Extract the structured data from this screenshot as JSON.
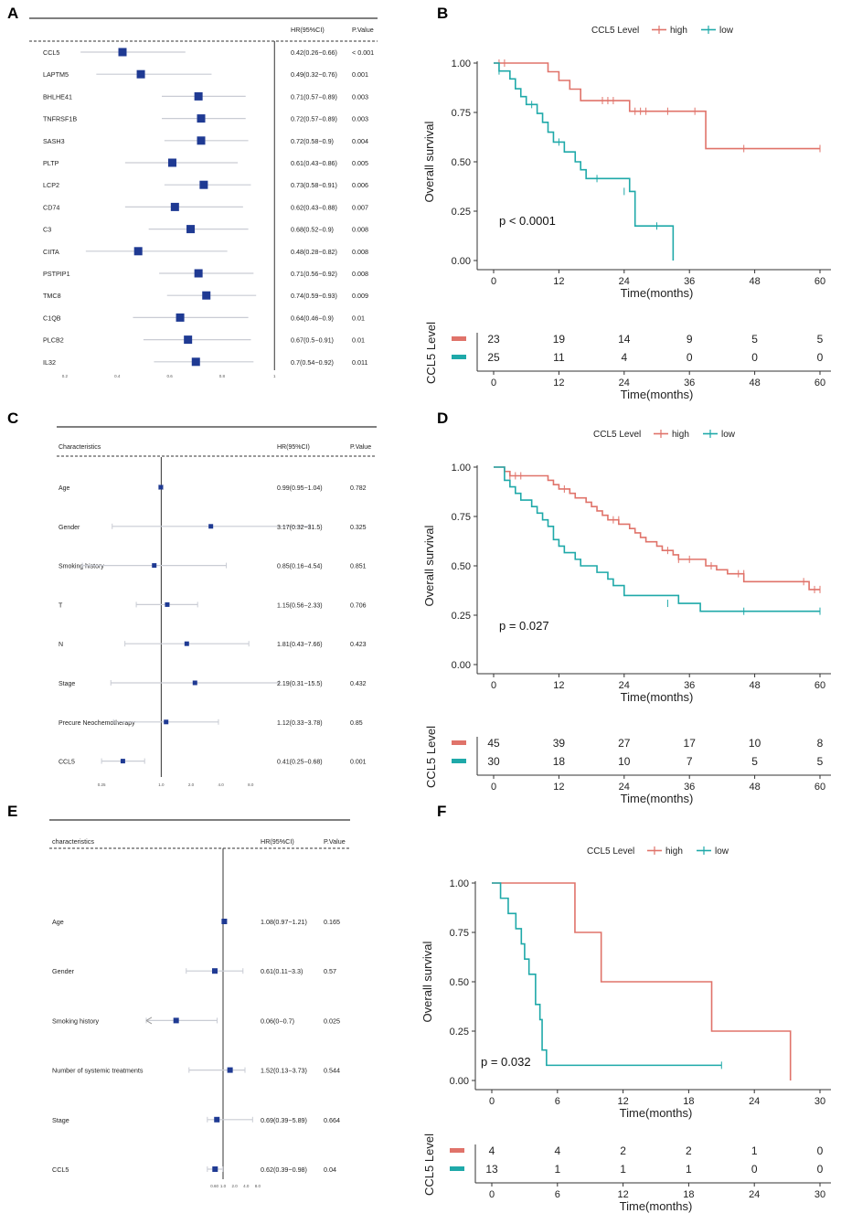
{
  "figure": {
    "panel_labels": [
      "A",
      "B",
      "C",
      "D",
      "E",
      "F"
    ]
  },
  "colors": {
    "forest_box": "#1f3a93",
    "forest_ci": "#c9ccd4",
    "high": "#e0736a",
    "low": "#1fa9a9",
    "axis": "#333333",
    "text": "#222222"
  },
  "chart_data": [
    {
      "panel": "A",
      "type": "forest",
      "header": {
        "name": "",
        "hr": "HR(95%CI)",
        "p": "P.Value"
      },
      "axis": {
        "ticks": [
          0.2,
          0.4,
          0.6,
          0.8,
          1
        ],
        "tick_labels": [
          "0.2",
          "0.4",
          "0.6",
          "0.8",
          "1"
        ],
        "reference": 1,
        "scale": "linear",
        "range": [
          0.12,
          1.02
        ]
      },
      "rows": [
        {
          "name": "CCL5",
          "hr": 0.42,
          "lo": 0.26,
          "hi": 0.66,
          "hr_text": "0.42(0.26−0.66)",
          "p": "< 0.001"
        },
        {
          "name": "LAPTM5",
          "hr": 0.49,
          "lo": 0.32,
          "hi": 0.76,
          "hr_text": "0.49(0.32−0.76)",
          "p": "0.001"
        },
        {
          "name": "BHLHE41",
          "hr": 0.71,
          "lo": 0.57,
          "hi": 0.89,
          "hr_text": "0.71(0.57−0.89)",
          "p": "0.003"
        },
        {
          "name": "TNFRSF1B",
          "hr": 0.72,
          "lo": 0.57,
          "hi": 0.89,
          "hr_text": "0.72(0.57−0.89)",
          "p": "0.003"
        },
        {
          "name": "SASH3",
          "hr": 0.72,
          "lo": 0.58,
          "hi": 0.9,
          "hr_text": "0.72(0.58−0.9)",
          "p": "0.004"
        },
        {
          "name": "PLTP",
          "hr": 0.61,
          "lo": 0.43,
          "hi": 0.86,
          "hr_text": "0.61(0.43−0.86)",
          "p": "0.005"
        },
        {
          "name": "LCP2",
          "hr": 0.73,
          "lo": 0.58,
          "hi": 0.91,
          "hr_text": "0.73(0.58−0.91)",
          "p": "0.006"
        },
        {
          "name": "CD74",
          "hr": 0.62,
          "lo": 0.43,
          "hi": 0.88,
          "hr_text": "0.62(0.43−0.88)",
          "p": "0.007"
        },
        {
          "name": "C3",
          "hr": 0.68,
          "lo": 0.52,
          "hi": 0.9,
          "hr_text": "0.68(0.52−0.9)",
          "p": "0.008"
        },
        {
          "name": "CIITA",
          "hr": 0.48,
          "lo": 0.28,
          "hi": 0.82,
          "hr_text": "0.48(0.28−0.82)",
          "p": "0.008"
        },
        {
          "name": "PSTPIP1",
          "hr": 0.71,
          "lo": 0.56,
          "hi": 0.92,
          "hr_text": "0.71(0.56−0.92)",
          "p": "0.008"
        },
        {
          "name": "TMC8",
          "hr": 0.74,
          "lo": 0.59,
          "hi": 0.93,
          "hr_text": "0.74(0.59−0.93)",
          "p": "0.009"
        },
        {
          "name": "C1QB",
          "hr": 0.64,
          "lo": 0.46,
          "hi": 0.9,
          "hr_text": "0.64(0.46−0.9)",
          "p": "0.01"
        },
        {
          "name": "PLCB2",
          "hr": 0.67,
          "lo": 0.5,
          "hi": 0.91,
          "hr_text": "0.67(0.5−0.91)",
          "p": "0.01"
        },
        {
          "name": "IL32",
          "hr": 0.7,
          "lo": 0.54,
          "hi": 0.92,
          "hr_text": "0.7(0.54−0.92)",
          "p": "0.011"
        }
      ]
    },
    {
      "panel": "B",
      "type": "km",
      "legend_title": "CCL5 Level",
      "legend": [
        "high",
        "low"
      ],
      "ylabel": "Overall survival",
      "xlabel": "Time(months)",
      "xlim": [
        0,
        60
      ],
      "xticks": [
        0,
        12,
        24,
        36,
        48,
        60
      ],
      "ylim": [
        0,
        1
      ],
      "yticks": [
        "0.00",
        "0.25",
        "0.50",
        "0.75",
        "1.00"
      ],
      "pvalue": "p < 0.0001",
      "series": [
        {
          "name": "high",
          "steps": [
            [
              0,
              1.0
            ],
            [
              10,
              0.956
            ],
            [
              12,
              0.912
            ],
            [
              14,
              0.868
            ],
            [
              16,
              0.81
            ],
            [
              25,
              0.756
            ],
            [
              39,
              0.567
            ],
            [
              60,
              0.567
            ]
          ],
          "censors": [
            [
              1,
              1.0
            ],
            [
              2,
              1.0
            ],
            [
              20,
              0.81
            ],
            [
              21,
              0.81
            ],
            [
              22,
              0.81
            ],
            [
              26,
              0.756
            ],
            [
              27,
              0.756
            ],
            [
              28,
              0.756
            ],
            [
              32,
              0.756
            ],
            [
              37,
              0.756
            ],
            [
              46,
              0.567
            ],
            [
              60,
              0.567
            ]
          ]
        },
        {
          "name": "low",
          "steps": [
            [
              0,
              1.0
            ],
            [
              1,
              0.96
            ],
            [
              3,
              0.92
            ],
            [
              4,
              0.87
            ],
            [
              5,
              0.83
            ],
            [
              6,
              0.79
            ],
            [
              8,
              0.745
            ],
            [
              9,
              0.7
            ],
            [
              10,
              0.65
            ],
            [
              11,
              0.6
            ],
            [
              13,
              0.55
            ],
            [
              15,
              0.5
            ],
            [
              16,
              0.46
            ],
            [
              17,
              0.415
            ],
            [
              25,
              0.35
            ],
            [
              26,
              0.175
            ],
            [
              33,
              0.0
            ]
          ],
          "censors": [
            [
              1,
              0.96
            ],
            [
              7,
              0.79
            ],
            [
              12,
              0.6
            ],
            [
              19,
              0.415
            ],
            [
              24,
              0.35
            ],
            [
              30,
              0.175
            ]
          ]
        }
      ],
      "risk_table": {
        "title": "CCL5 Level",
        "times": [
          0,
          12,
          24,
          36,
          48,
          60
        ],
        "rows": [
          {
            "group": "high",
            "counts": [
              23,
              19,
              14,
              9,
              5,
              5
            ]
          },
          {
            "group": "low",
            "counts": [
              25,
              11,
              4,
              0,
              0,
              0
            ]
          }
        ],
        "xlabel": "Time(months)"
      }
    },
    {
      "panel": "C",
      "type": "forest",
      "header": {
        "name": "Characteristics",
        "hr": "HR(95%CI)",
        "p": "P.Value"
      },
      "axis": {
        "ticks": [
          0.25,
          1.0,
          2.0,
          4.0,
          8.0
        ],
        "tick_labels": [
          "0.25",
          "1.0",
          "2.0",
          "4.0",
          "8.0"
        ],
        "reference": 1,
        "scale": "log",
        "range": [
          0.1,
          40
        ]
      },
      "rows": [
        {
          "name": "Age",
          "hr": 0.99,
          "lo": 0.95,
          "hi": 1.04,
          "hr_text": "0.99(0.95−1.04)",
          "p": "0.782"
        },
        {
          "name": "Gender",
          "hr": 3.17,
          "lo": 0.32,
          "hi": 31.5,
          "hr_text": "3.17(0.32−31.5)",
          "p": "0.325"
        },
        {
          "name": "Smoking history",
          "hr": 0.85,
          "lo": 0.16,
          "hi": 4.54,
          "hr_text": "0.85(0.16−4.54)",
          "p": "0.851"
        },
        {
          "name": "T",
          "hr": 1.15,
          "lo": 0.56,
          "hi": 2.33,
          "hr_text": "1.15(0.56−2.33)",
          "p": "0.706"
        },
        {
          "name": "N",
          "hr": 1.81,
          "lo": 0.43,
          "hi": 7.66,
          "hr_text": "1.81(0.43−7.66)",
          "p": "0.423"
        },
        {
          "name": "Stage",
          "hr": 2.19,
          "lo": 0.31,
          "hi": 15.5,
          "hr_text": "2.19(0.31−15.5)",
          "p": "0.432"
        },
        {
          "name": "Precure Neochemotherapy",
          "hr": 1.12,
          "lo": 0.33,
          "hi": 3.78,
          "hr_text": "1.12(0.33−3.78)",
          "p": "0.85"
        },
        {
          "name": "CCL5",
          "hr": 0.41,
          "lo": 0.25,
          "hi": 0.68,
          "hr_text": "0.41(0.25−0.68)",
          "p": "0.001"
        }
      ]
    },
    {
      "panel": "D",
      "type": "km",
      "legend_title": "CCL5 Level",
      "legend": [
        "high",
        "low"
      ],
      "ylabel": "Overall survival",
      "xlabel": "Time(months)",
      "xlim": [
        0,
        60
      ],
      "xticks": [
        0,
        12,
        24,
        36,
        48,
        60
      ],
      "ylim": [
        0,
        1
      ],
      "yticks": [
        "0.00",
        "0.25",
        "0.50",
        "0.75",
        "1.00"
      ],
      "pvalue": "p = 0.027",
      "series": [
        {
          "name": "high",
          "steps": [
            [
              0,
              1.0
            ],
            [
              2,
              0.978
            ],
            [
              3,
              0.956
            ],
            [
              10,
              0.933
            ],
            [
              11,
              0.911
            ],
            [
              12,
              0.889
            ],
            [
              14,
              0.867
            ],
            [
              15,
              0.844
            ],
            [
              17,
              0.822
            ],
            [
              18,
              0.8
            ],
            [
              19,
              0.778
            ],
            [
              20,
              0.756
            ],
            [
              21,
              0.733
            ],
            [
              23,
              0.711
            ],
            [
              25,
              0.689
            ],
            [
              26,
              0.667
            ],
            [
              27,
              0.644
            ],
            [
              28,
              0.622
            ],
            [
              30,
              0.6
            ],
            [
              31,
              0.578
            ],
            [
              33,
              0.556
            ],
            [
              34,
              0.533
            ],
            [
              39,
              0.5
            ],
            [
              41,
              0.48
            ],
            [
              43,
              0.46
            ],
            [
              46,
              0.42
            ],
            [
              58,
              0.38
            ],
            [
              60,
              0.38
            ]
          ],
          "censors": [
            [
              3,
              0.956
            ],
            [
              4,
              0.956
            ],
            [
              5,
              0.956
            ],
            [
              13,
              0.889
            ],
            [
              22,
              0.733
            ],
            [
              23,
              0.733
            ],
            [
              32,
              0.578
            ],
            [
              34,
              0.533
            ],
            [
              36,
              0.533
            ],
            [
              40,
              0.5
            ],
            [
              45,
              0.46
            ],
            [
              46,
              0.46
            ],
            [
              57,
              0.42
            ],
            [
              59,
              0.38
            ],
            [
              60,
              0.38
            ]
          ]
        },
        {
          "name": "low",
          "steps": [
            [
              0,
              1.0
            ],
            [
              2,
              0.933
            ],
            [
              3,
              0.9
            ],
            [
              4,
              0.867
            ],
            [
              5,
              0.833
            ],
            [
              7,
              0.8
            ],
            [
              8,
              0.767
            ],
            [
              9,
              0.733
            ],
            [
              10,
              0.7
            ],
            [
              11,
              0.633
            ],
            [
              12,
              0.6
            ],
            [
              13,
              0.567
            ],
            [
              15,
              0.533
            ],
            [
              16,
              0.5
            ],
            [
              19,
              0.467
            ],
            [
              21,
              0.433
            ],
            [
              22,
              0.4
            ],
            [
              24,
              0.35
            ],
            [
              34,
              0.31
            ],
            [
              38,
              0.27
            ],
            [
              60,
              0.27
            ]
          ],
          "censors": [
            [
              32,
              0.31
            ],
            [
              46,
              0.27
            ],
            [
              60,
              0.27
            ]
          ]
        }
      ],
      "risk_table": {
        "title": "CCL5 Level",
        "times": [
          0,
          12,
          24,
          36,
          48,
          60
        ],
        "rows": [
          {
            "group": "high",
            "counts": [
              45,
              39,
              27,
              17,
              10,
              8
            ]
          },
          {
            "group": "low",
            "counts": [
              30,
              18,
              10,
              7,
              5,
              5
            ]
          }
        ],
        "xlabel": "Time(months)"
      }
    },
    {
      "panel": "E",
      "type": "forest",
      "header": {
        "name": "characteristics",
        "hr": "HR(95%CI)",
        "p": "P.Value"
      },
      "axis": {
        "ticks": [
          0.6,
          1.0,
          2.0,
          4.0,
          8.0
        ],
        "tick_labels": [
          "0.60",
          "1.0",
          "2.0",
          "4.0",
          "8.0"
        ],
        "reference": 1,
        "scale": "log",
        "range": [
          0.01,
          100
        ]
      },
      "rows": [
        {
          "name": "Age",
          "hr": 1.08,
          "lo": 0.97,
          "hi": 1.21,
          "hr_text": "1.08(0.97−1.21)",
          "p": "0.165"
        },
        {
          "name": "Gender",
          "hr": 0.61,
          "lo": 0.11,
          "hi": 3.3,
          "hr_text": "0.61(0.11−3.3)",
          "p": "0.57"
        },
        {
          "name": "Smoking history",
          "hr": 0.06,
          "lo": 0.0,
          "hi": 0.7,
          "hr_text": "0.06(0−0.7)",
          "p": "0.025",
          "arrow_left": true
        },
        {
          "name": "Number of systemic treatments",
          "hr": 1.52,
          "lo": 0.13,
          "hi": 3.73,
          "hr_text": "1.52(0.13−3.73)",
          "p": "0.544"
        },
        {
          "name": "Stage",
          "hr": 0.69,
          "lo": 0.39,
          "hi": 5.89,
          "hr_text": "0.69(0.39−5.89)",
          "p": "0.664"
        },
        {
          "name": "CCL5",
          "hr": 0.62,
          "lo": 0.39,
          "hi": 0.98,
          "hr_text": "0.62(0.39−0.98)",
          "p": "0.04"
        }
      ]
    },
    {
      "panel": "F",
      "type": "km",
      "legend_title": "CCL5 Level",
      "legend": [
        "high",
        "low"
      ],
      "ylabel": "Overall survival",
      "xlabel": "Time(months)",
      "xlim": [
        0,
        30
      ],
      "xticks": [
        0,
        6,
        12,
        18,
        24,
        30
      ],
      "ylim": [
        0,
        1
      ],
      "yticks": [
        "0.00",
        "0.25",
        "0.50",
        "0.75",
        "1.00"
      ],
      "pvalue": "p = 0.032",
      "series": [
        {
          "name": "high",
          "steps": [
            [
              0,
              1.0
            ],
            [
              7.6,
              0.75
            ],
            [
              10,
              0.5
            ],
            [
              20.1,
              0.25
            ],
            [
              27.3,
              0.0
            ]
          ],
          "censors": []
        },
        {
          "name": "low",
          "steps": [
            [
              0,
              1.0
            ],
            [
              0.8,
              0.923
            ],
            [
              1.5,
              0.846
            ],
            [
              2.2,
              0.769
            ],
            [
              2.7,
              0.692
            ],
            [
              3.0,
              0.615
            ],
            [
              3.4,
              0.538
            ],
            [
              4.0,
              0.385
            ],
            [
              4.4,
              0.308
            ],
            [
              4.6,
              0.154
            ],
            [
              5.0,
              0.077
            ],
            [
              21,
              0.077
            ]
          ],
          "censors": [
            [
              21,
              0.077
            ]
          ]
        }
      ],
      "risk_table": {
        "title": "CCL5 Level",
        "times": [
          0,
          6,
          12,
          18,
          24,
          30
        ],
        "rows": [
          {
            "group": "high",
            "counts": [
              4,
              4,
              2,
              2,
              1,
              0
            ]
          },
          {
            "group": "low",
            "counts": [
              13,
              1,
              1,
              1,
              0,
              0
            ]
          }
        ],
        "xlabel": "Time(months)"
      }
    }
  ]
}
